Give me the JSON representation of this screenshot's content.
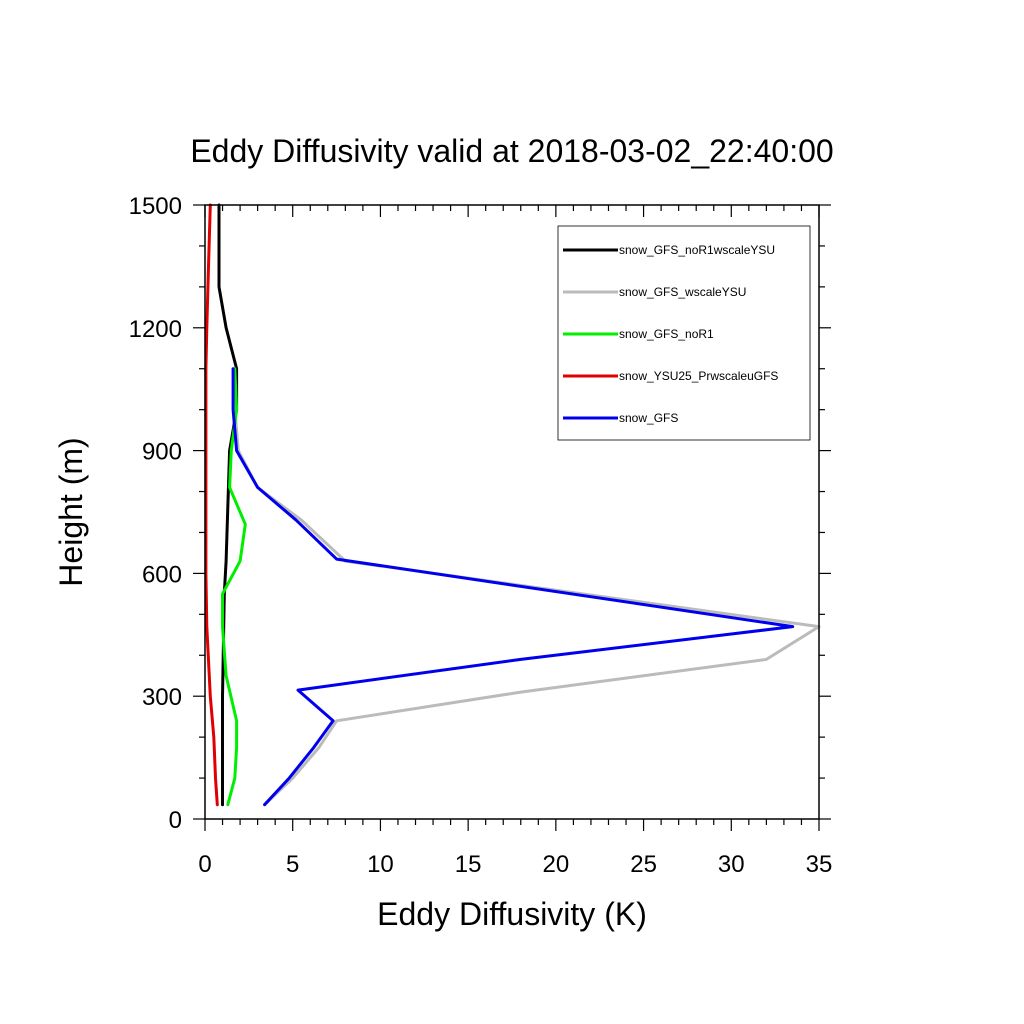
{
  "chart_data": {
    "type": "line",
    "title": "Eddy Diffusivity valid at 2018-03-02_22:40:00",
    "xlabel": "Eddy Diffusivity (K)",
    "ylabel": "Height (m)",
    "xlim": [
      0,
      35
    ],
    "ylim": [
      0,
      1500
    ],
    "xticks": [
      0,
      5,
      10,
      15,
      20,
      25,
      30,
      35
    ],
    "yticks": [
      0,
      300,
      600,
      900,
      1200,
      1500
    ],
    "legend_position": "top-right",
    "grid": false,
    "series": [
      {
        "name": "snow_GFS_noR1wscaleYSU",
        "color": "#000000",
        "x": [
          1.0,
          1.0,
          1.0,
          1.0,
          1.1,
          1.2,
          1.4,
          1.8,
          1.8,
          1.2,
          0.8,
          0.8
        ],
        "y": [
          35,
          100,
          175,
          300,
          550,
          630,
          900,
          1000,
          1100,
          1200,
          1300,
          1500
        ]
      },
      {
        "name": "snow_GFS_wscaleYSU",
        "color": "#bbbbbb",
        "x": [
          3.4,
          5.0,
          6.5,
          7.5,
          18.0,
          32.0,
          35.0,
          8.0,
          5.5,
          3.0,
          1.9,
          1.7,
          1.6
        ],
        "y": [
          35,
          100,
          175,
          240,
          310,
          390,
          470,
          630,
          730,
          810,
          900,
          1000,
          1100
        ]
      },
      {
        "name": "snow_GFS_noR1",
        "color": "#00ee00",
        "x": [
          1.3,
          1.7,
          1.8,
          1.8,
          1.2,
          1.0,
          1.0,
          2.0,
          2.3,
          1.4,
          1.5,
          1.8,
          1.7
        ],
        "y": [
          35,
          100,
          175,
          240,
          350,
          470,
          550,
          630,
          720,
          810,
          900,
          1000,
          1100
        ]
      },
      {
        "name": "snow_YSU25_PrwscaleuGFS",
        "color": "#e00000",
        "x": [
          0.7,
          0.6,
          0.5,
          0.3,
          0.1,
          0.05,
          0.05,
          0.05,
          0.05,
          0.1,
          0.2,
          0.3
        ],
        "y": [
          35,
          100,
          200,
          300,
          470,
          600,
          800,
          1000,
          1100,
          1200,
          1350,
          1500
        ]
      },
      {
        "name": "snow_GFS",
        "color": "#0000ee",
        "x": [
          3.4,
          4.8,
          6.2,
          7.3,
          5.3,
          18.0,
          33.5,
          7.5,
          5.2,
          3.0,
          1.8,
          1.6,
          1.6
        ],
        "y": [
          35,
          100,
          175,
          240,
          315,
          390,
          470,
          635,
          730,
          810,
          900,
          1000,
          1100
        ]
      }
    ]
  }
}
